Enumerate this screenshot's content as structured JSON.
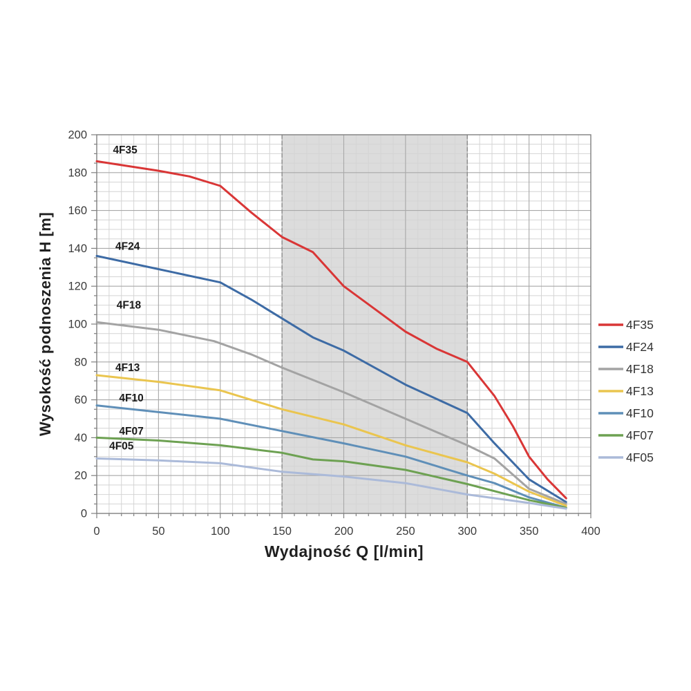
{
  "chart_data": {
    "type": "line",
    "title": "",
    "xlabel": "Wydajność Q [l/min]",
    "ylabel": "Wysokość podnoszenia H [m]",
    "xlim": [
      0,
      400
    ],
    "ylim": [
      0,
      200
    ],
    "x_ticks": [
      0,
      50,
      100,
      150,
      200,
      250,
      300,
      350,
      400
    ],
    "y_ticks": [
      0,
      20,
      40,
      60,
      80,
      100,
      120,
      140,
      160,
      180,
      200
    ],
    "x_minor_step": 10,
    "y_minor_step": 5,
    "grid": "on",
    "legend_position": "right-outside",
    "shaded_band": {
      "x_from": 150,
      "x_to": 300,
      "fill": "#dcdcdc",
      "edge_color": "#8c8c8c"
    },
    "colors": {
      "minor_grid": "#d4d4d4",
      "major_grid": "#a8a8a8",
      "axis": "#7f7f7f",
      "tick_label": "#3a3a3a",
      "axis_title": "#1f1f1f",
      "series_label": "#1a1a1a",
      "legend_text": "#333333"
    },
    "series": [
      {
        "name": "4F35",
        "color": "#d93636",
        "label_pos": [
          23,
          192
        ],
        "points": [
          [
            0,
            186
          ],
          [
            50,
            181
          ],
          [
            75,
            178
          ],
          [
            100,
            173
          ],
          [
            125,
            159
          ],
          [
            150,
            146
          ],
          [
            175,
            138
          ],
          [
            200,
            120
          ],
          [
            225,
            108
          ],
          [
            250,
            96
          ],
          [
            275,
            87
          ],
          [
            300,
            80
          ],
          [
            322,
            62
          ],
          [
            337,
            46
          ],
          [
            350,
            30
          ],
          [
            365,
            18
          ],
          [
            380,
            8
          ]
        ]
      },
      {
        "name": "4F24",
        "color": "#3d6ba5",
        "label_pos": [
          25,
          141
        ],
        "points": [
          [
            0,
            136
          ],
          [
            50,
            129
          ],
          [
            100,
            122
          ],
          [
            125,
            113
          ],
          [
            150,
            103
          ],
          [
            175,
            93
          ],
          [
            200,
            86
          ],
          [
            250,
            68
          ],
          [
            300,
            53
          ],
          [
            322,
            37
          ],
          [
            350,
            18
          ],
          [
            380,
            6
          ]
        ]
      },
      {
        "name": "4F18",
        "color": "#a3a3a3",
        "label_pos": [
          26,
          110
        ],
        "points": [
          [
            0,
            101
          ],
          [
            50,
            97
          ],
          [
            95,
            91
          ],
          [
            125,
            84
          ],
          [
            150,
            77
          ],
          [
            200,
            64
          ],
          [
            250,
            50
          ],
          [
            300,
            36
          ],
          [
            322,
            29
          ],
          [
            350,
            13
          ],
          [
            380,
            5
          ]
        ]
      },
      {
        "name": "4F13",
        "color": "#eac54f",
        "label_pos": [
          25,
          77
        ],
        "points": [
          [
            0,
            73
          ],
          [
            50,
            69.5
          ],
          [
            100,
            65
          ],
          [
            150,
            55
          ],
          [
            200,
            47
          ],
          [
            250,
            36
          ],
          [
            300,
            27
          ],
          [
            322,
            21
          ],
          [
            350,
            11.5
          ],
          [
            380,
            4
          ]
        ]
      },
      {
        "name": "4F10",
        "color": "#5f8fb8",
        "label_pos": [
          28,
          61
        ],
        "points": [
          [
            0,
            57
          ],
          [
            50,
            53.5
          ],
          [
            100,
            50
          ],
          [
            150,
            43.5
          ],
          [
            200,
            37
          ],
          [
            250,
            30
          ],
          [
            300,
            20
          ],
          [
            322,
            16
          ],
          [
            350,
            8.5
          ],
          [
            380,
            3
          ]
        ]
      },
      {
        "name": "4F07",
        "color": "#6da152",
        "label_pos": [
          28,
          43.5
        ],
        "points": [
          [
            0,
            40
          ],
          [
            50,
            38.5
          ],
          [
            100,
            36
          ],
          [
            150,
            32
          ],
          [
            175,
            28.5
          ],
          [
            200,
            27.5
          ],
          [
            250,
            23
          ],
          [
            300,
            15.5
          ],
          [
            350,
            7
          ],
          [
            380,
            3
          ]
        ]
      },
      {
        "name": "4F05",
        "color": "#abbad9",
        "label_pos": [
          20,
          35.5
        ],
        "points": [
          [
            0,
            29
          ],
          [
            50,
            28
          ],
          [
            100,
            26.5
          ],
          [
            150,
            22
          ],
          [
            200,
            19.5
          ],
          [
            250,
            16
          ],
          [
            300,
            10
          ],
          [
            350,
            5.5
          ],
          [
            380,
            2.5
          ]
        ]
      }
    ],
    "legend": {
      "entries": [
        "4F35",
        "4F24",
        "4F18",
        "4F13",
        "4F10",
        "4F07",
        "4F05"
      ]
    }
  }
}
